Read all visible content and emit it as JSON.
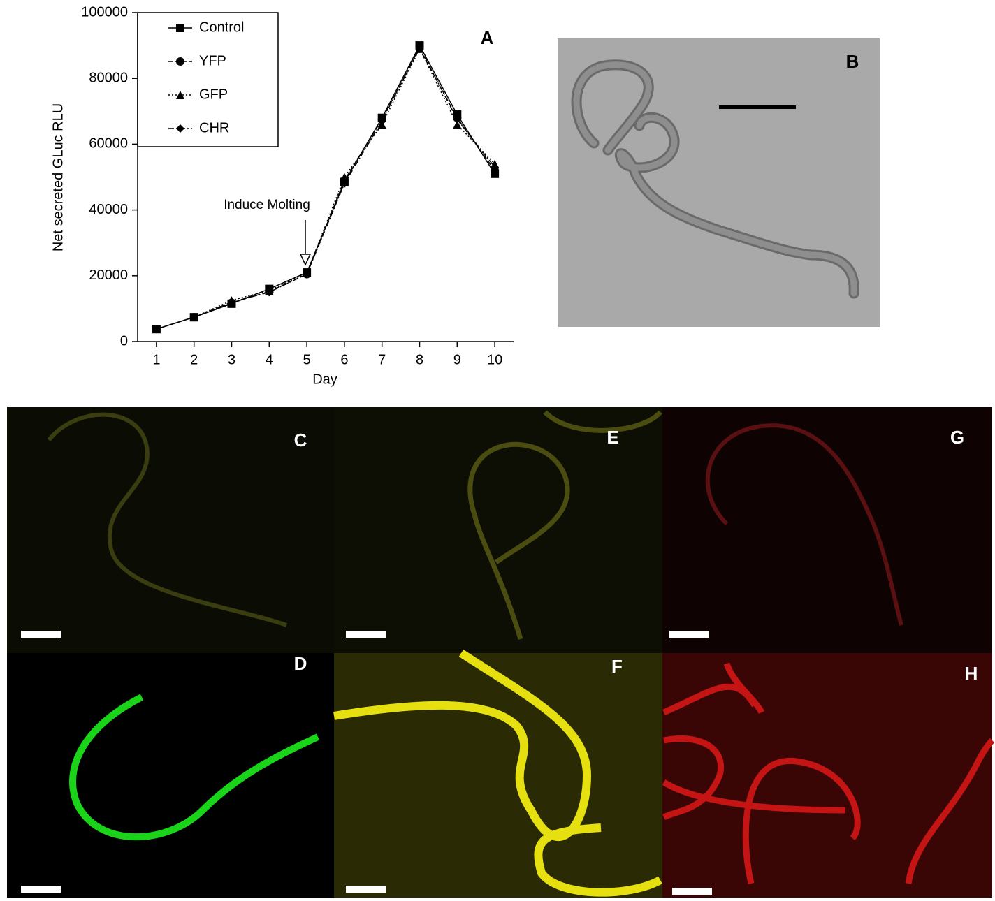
{
  "chart_data": {
    "type": "line",
    "panel_label": "A",
    "ylabel": "Net secreted GLuc RLU",
    "xlabel": "Day",
    "annotation": "Induce Molting",
    "x": [
      1,
      2,
      3,
      4,
      5,
      6,
      7,
      8,
      9,
      10
    ],
    "xlim": [
      0.5,
      10.5
    ],
    "xticks": [
      1,
      2,
      3,
      4,
      5,
      6,
      7,
      8,
      9,
      10
    ],
    "ylim": [
      0,
      100000
    ],
    "yticks": [
      0,
      20000,
      40000,
      60000,
      80000,
      100000
    ],
    "legend": "upper left",
    "series": [
      {
        "name": "Control",
        "color": "#000000",
        "marker": "square",
        "dash": "solid",
        "values": [
          3800,
          7400,
          11500,
          16000,
          21000,
          48500,
          68000,
          90000,
          69000,
          51000
        ]
      },
      {
        "name": "YFP",
        "color": "#000000",
        "marker": "circle",
        "dash": "dashed",
        "values": [
          3800,
          7400,
          11800,
          15200,
          20500,
          49000,
          67500,
          89000,
          68000,
          52000
        ]
      },
      {
        "name": "GFP",
        "color": "#000000",
        "marker": "triangle",
        "dash": "dotted",
        "values": [
          3800,
          7400,
          12500,
          15500,
          20800,
          50000,
          66000,
          89000,
          66000,
          54000
        ]
      },
      {
        "name": "CHR",
        "color": "#000000",
        "marker": "diamond",
        "dash": "dashdot",
        "values": [
          3800,
          7400,
          12000,
          15000,
          20500,
          48000,
          67000,
          89500,
          67500,
          53000
        ]
      }
    ]
  },
  "panels": [
    {
      "label": "B"
    },
    {
      "label": "C"
    },
    {
      "label": "E"
    },
    {
      "label": "G"
    },
    {
      "label": "D"
    },
    {
      "label": "F"
    },
    {
      "label": "H"
    }
  ]
}
